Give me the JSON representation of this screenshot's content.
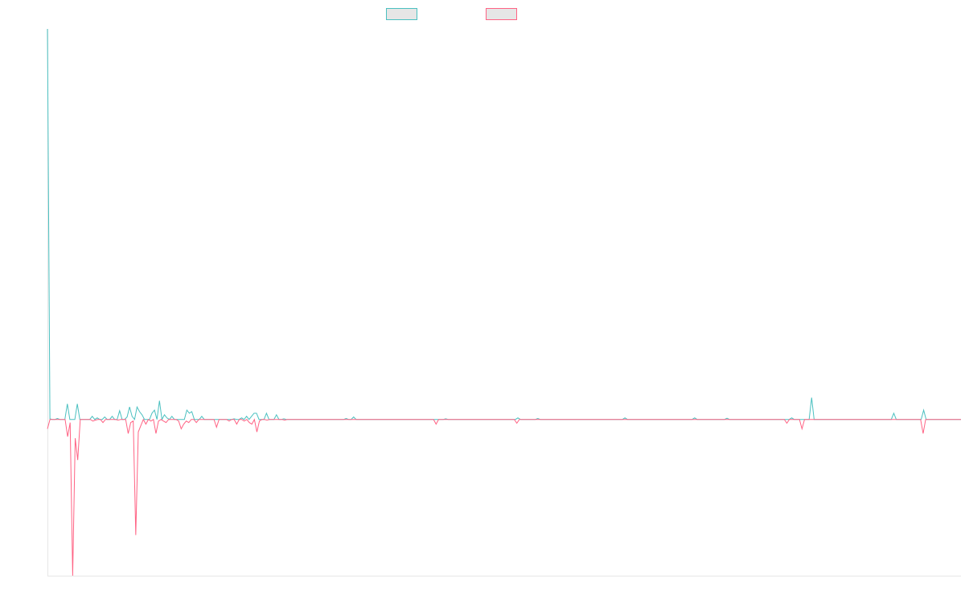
{
  "chart_data": {
    "type": "line",
    "title": "",
    "xlabel": "",
    "ylabel": "",
    "ylim": [
      -5,
      12.5
    ],
    "grid": false,
    "legend_position": "top-center",
    "series": [
      {
        "name": "",
        "color": "#4bc0c0",
        "values": [
          12.5,
          0.02,
          0,
          0,
          0.03,
          0,
          0,
          0,
          0.5,
          0,
          0,
          0,
          0.5,
          0,
          0,
          0,
          0,
          0,
          0.1,
          0,
          0.05,
          0,
          0,
          0.08,
          0,
          0,
          0.1,
          0,
          0,
          0.28,
          0,
          0,
          0.08,
          0.4,
          0.1,
          0,
          0.4,
          0.25,
          0.15,
          0,
          0,
          0,
          0.2,
          0.3,
          0,
          0.6,
          0,
          0.15,
          0.05,
          0,
          0.1,
          0,
          0,
          0,
          0,
          0,
          0.3,
          0.2,
          0.25,
          0,
          0,
          0,
          0.1,
          0,
          0,
          0,
          0,
          0,
          0,
          0,
          0,
          0,
          0,
          0,
          0,
          0.02,
          0,
          0,
          0.05,
          0,
          0.1,
          0,
          0.1,
          0.2,
          0.2,
          0,
          0,
          0,
          0.2,
          0,
          0,
          0,
          0.15,
          0,
          0,
          0.02,
          0,
          0,
          0,
          0,
          0,
          0,
          0,
          0,
          0,
          0,
          0,
          0,
          0,
          0,
          0,
          0,
          0,
          0,
          0,
          0,
          0,
          0,
          0,
          0,
          0.03,
          0,
          0,
          0.08,
          0,
          0,
          0,
          0,
          0,
          0,
          0,
          0,
          0,
          0,
          0,
          0,
          0,
          0,
          0,
          0,
          0,
          0,
          0,
          0,
          0,
          0,
          0,
          0,
          0,
          0,
          0,
          0,
          0,
          0,
          0,
          0,
          0,
          0,
          0,
          0,
          0.02,
          0,
          0,
          0,
          0,
          0,
          0,
          0,
          0,
          0,
          0,
          0,
          0,
          0,
          0,
          0,
          0,
          0,
          0,
          0,
          0,
          0,
          0,
          0,
          0,
          0,
          0,
          0,
          0,
          0.05,
          0,
          0,
          0,
          0,
          0,
          0,
          0,
          0.03,
          0,
          0,
          0,
          0,
          0,
          0,
          0,
          0,
          0,
          0,
          0,
          0,
          0,
          0,
          0,
          0,
          0,
          0,
          0,
          0,
          0,
          0,
          0,
          0,
          0,
          0,
          0,
          0,
          0,
          0,
          0,
          0,
          0,
          0,
          0.05,
          0,
          0,
          0,
          0,
          0,
          0,
          0,
          0,
          0,
          0,
          0,
          0,
          0,
          0,
          0,
          0,
          0,
          0,
          0,
          0,
          0,
          0,
          0,
          0,
          0,
          0,
          0,
          0.05,
          0,
          0,
          0,
          0,
          0,
          0,
          0,
          0,
          0,
          0,
          0,
          0,
          0.04,
          0,
          0,
          0,
          0,
          0,
          0,
          0,
          0,
          0,
          0,
          0,
          0,
          0,
          0,
          0,
          0,
          0,
          0,
          0,
          0,
          0,
          0,
          0,
          0,
          0,
          0.05,
          0,
          0,
          0,
          0,
          0,
          0,
          0,
          0.7,
          0,
          0,
          0,
          0,
          0,
          0,
          0,
          0,
          0,
          0,
          0,
          0,
          0,
          0,
          0,
          0,
          0,
          0,
          0,
          0,
          0,
          0,
          0,
          0,
          0,
          0,
          0,
          0,
          0,
          0,
          0,
          0,
          0.2,
          0,
          0,
          0,
          0,
          0,
          0,
          0,
          0,
          0,
          0,
          0,
          0.3,
          0,
          0,
          0,
          0,
          0,
          0,
          0,
          0,
          0,
          0,
          0,
          0,
          0,
          0,
          0
        ]
      },
      {
        "name": "",
        "color": "#ff6384",
        "values": [
          -0.3,
          0,
          0,
          0,
          0,
          0,
          0,
          0,
          -0.55,
          -0.1,
          -5,
          -0.6,
          -1.3,
          0,
          0,
          0,
          0,
          0,
          -0.05,
          -0.02,
          0,
          0,
          -0.1,
          0,
          0,
          0,
          0,
          0,
          -0.02,
          0,
          0,
          0,
          -0.45,
          -0.1,
          -0.05,
          -3.7,
          -0.4,
          -0.2,
          0,
          -0.15,
          0,
          -0.05,
          0,
          -0.45,
          -0.05,
          0,
          -0.05,
          -0.1,
          0,
          0,
          0,
          0,
          -0.05,
          -0.3,
          -0.15,
          -0.05,
          -0.1,
          0,
          0,
          -0.1,
          0,
          0,
          0,
          0,
          0,
          0,
          0,
          -0.25,
          0,
          0,
          0,
          0,
          -0.05,
          0,
          0,
          -0.15,
          0,
          0,
          -0.05,
          0,
          -0.1,
          -0.15,
          0,
          -0.4,
          -0.05,
          0,
          0,
          -0.02,
          0,
          0,
          0,
          0,
          0,
          0,
          -0.02,
          0,
          0,
          0,
          0,
          0,
          0,
          0,
          0,
          0,
          0,
          0,
          0,
          0,
          0,
          0,
          0,
          0,
          0,
          0,
          0,
          0,
          0,
          0,
          0,
          0,
          0,
          0,
          0,
          0,
          0,
          0,
          0,
          0,
          0,
          0,
          0,
          0,
          0,
          0,
          0,
          0,
          0,
          0,
          0,
          0,
          0,
          0,
          0,
          0,
          0,
          0,
          0,
          0,
          0,
          0,
          0,
          0,
          0,
          0,
          -0.15,
          0,
          0,
          0,
          0,
          0,
          0,
          0,
          0,
          0,
          0,
          0,
          0,
          0,
          0,
          0,
          0,
          0,
          0,
          0,
          0,
          0,
          0,
          0,
          0,
          0,
          0,
          0,
          0,
          0,
          0,
          0,
          -0.12,
          0,
          0,
          0,
          0,
          0,
          0,
          0,
          0,
          0,
          0,
          0,
          0,
          0,
          0,
          0,
          0,
          0,
          0,
          0,
          0,
          0,
          0,
          0,
          0,
          0,
          0,
          0,
          0,
          0,
          0,
          0,
          0,
          0,
          0,
          0,
          0,
          0,
          0,
          0,
          0,
          0,
          0,
          0,
          0,
          0,
          0,
          0,
          0,
          0,
          0,
          0,
          0,
          0,
          0,
          0,
          0,
          0,
          0,
          0,
          0,
          0,
          0,
          0,
          0,
          0,
          0,
          0,
          0,
          0,
          0,
          0,
          0,
          0,
          0,
          0,
          0,
          0,
          0,
          0,
          0,
          0,
          0,
          0,
          0,
          0,
          0,
          0,
          0,
          0,
          0,
          0,
          0,
          0,
          0,
          0,
          0,
          0,
          0,
          0,
          0,
          0,
          0,
          0,
          0,
          0,
          0,
          -0.12,
          0,
          0,
          0,
          0,
          0,
          -0.3,
          0,
          0,
          0,
          0,
          0,
          0,
          0,
          0,
          0,
          0,
          0,
          0,
          0,
          0,
          0,
          0,
          0,
          0,
          0,
          0,
          0,
          0,
          0,
          0,
          0,
          0,
          0,
          0,
          0,
          0,
          0,
          0,
          0,
          0,
          0,
          0,
          0,
          0,
          0,
          0,
          0,
          0,
          0,
          0,
          0,
          0,
          0,
          -0.45,
          0,
          0,
          0,
          0,
          0,
          0,
          0,
          0,
          0,
          0,
          0,
          0,
          0,
          0,
          0
        ]
      }
    ]
  }
}
